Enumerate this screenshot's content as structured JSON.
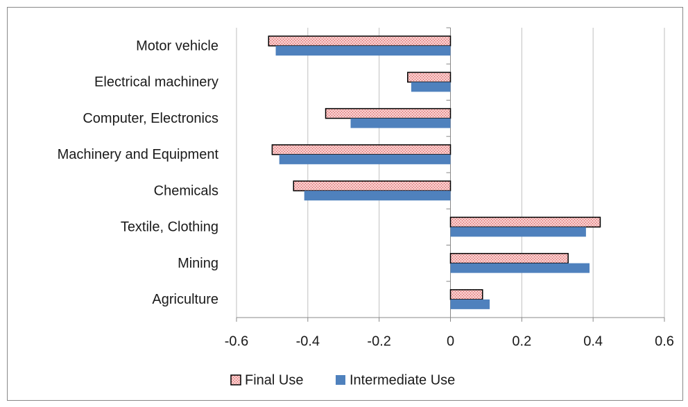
{
  "chart_data": {
    "type": "bar",
    "orientation": "horizontal",
    "categories": [
      "Motor vehicle",
      "Electrical machinery",
      "Computer, Electronics",
      "Machinery and Equipment",
      "Chemicals",
      "Textile, Clothing",
      "Mining",
      "Agriculture"
    ],
    "series": [
      {
        "name": "Final Use",
        "color": "#f7c6c6",
        "values": [
          -0.51,
          -0.12,
          -0.35,
          -0.5,
          -0.44,
          0.42,
          0.33,
          0.09
        ]
      },
      {
        "name": "Intermediate Use",
        "color": "#4f81bd",
        "values": [
          -0.49,
          -0.11,
          -0.28,
          -0.48,
          -0.41,
          0.38,
          0.39,
          0.11
        ]
      }
    ],
    "xlim": [
      -0.6,
      0.6
    ],
    "xticks": [
      -0.6,
      -0.4,
      -0.2,
      0,
      0.2,
      0.4,
      0.6
    ],
    "grid": true,
    "legend": "bottom"
  }
}
